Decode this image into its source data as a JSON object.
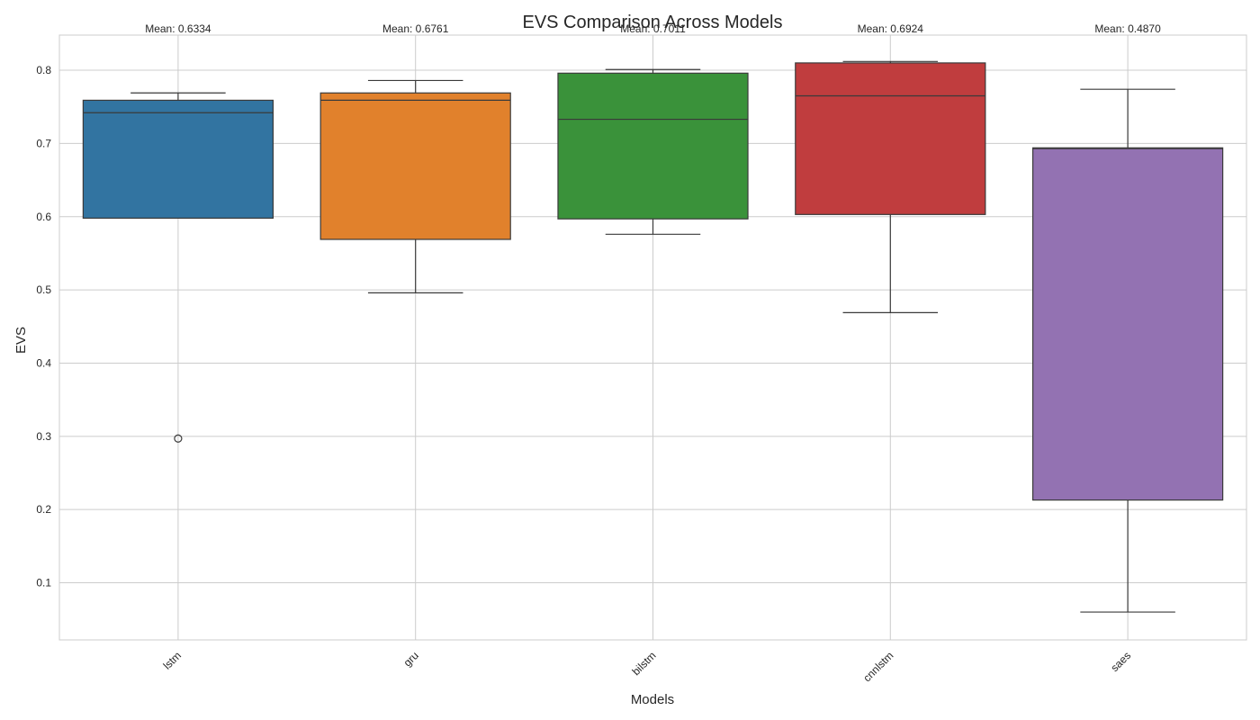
{
  "chart_data": {
    "type": "box",
    "title": "EVS Comparison Across Models",
    "xlabel": "Models",
    "ylabel": "EVS",
    "ylim": [
      0.022,
      0.848
    ],
    "yticks": [
      "0.1",
      "0.2",
      "0.3",
      "0.4",
      "0.5",
      "0.6",
      "0.7",
      "0.8"
    ],
    "grid": true,
    "categories": [
      "lstm",
      "gru",
      "bilstm",
      "cnnlstm",
      "saes"
    ],
    "colors": [
      "#3274a1",
      "#e1812c",
      "#3a923a",
      "#c03d3e",
      "#9372b2"
    ],
    "boxes": [
      {
        "name": "lstm",
        "whislo": 0.598,
        "q1": 0.598,
        "med": 0.742,
        "q3": 0.759,
        "whishi": 0.769,
        "fliers": [
          0.297
        ],
        "mean_label": "Mean: 0.6334"
      },
      {
        "name": "gru",
        "whislo": 0.496,
        "q1": 0.569,
        "med": 0.759,
        "q3": 0.769,
        "whishi": 0.786,
        "fliers": [],
        "mean_label": "Mean: 0.6761"
      },
      {
        "name": "bilstm",
        "whislo": 0.576,
        "q1": 0.597,
        "med": 0.733,
        "q3": 0.796,
        "whishi": 0.801,
        "fliers": [],
        "mean_label": "Mean: 0.7011"
      },
      {
        "name": "cnnlstm",
        "whislo": 0.469,
        "q1": 0.603,
        "med": 0.765,
        "q3": 0.81,
        "whishi": 0.812,
        "fliers": [],
        "mean_label": "Mean: 0.6924"
      },
      {
        "name": "saes",
        "whislo": 0.06,
        "q1": 0.213,
        "med": 0.693,
        "q3": 0.694,
        "whishi": 0.774,
        "fliers": [],
        "mean_label": "Mean: 0.4870"
      }
    ]
  }
}
